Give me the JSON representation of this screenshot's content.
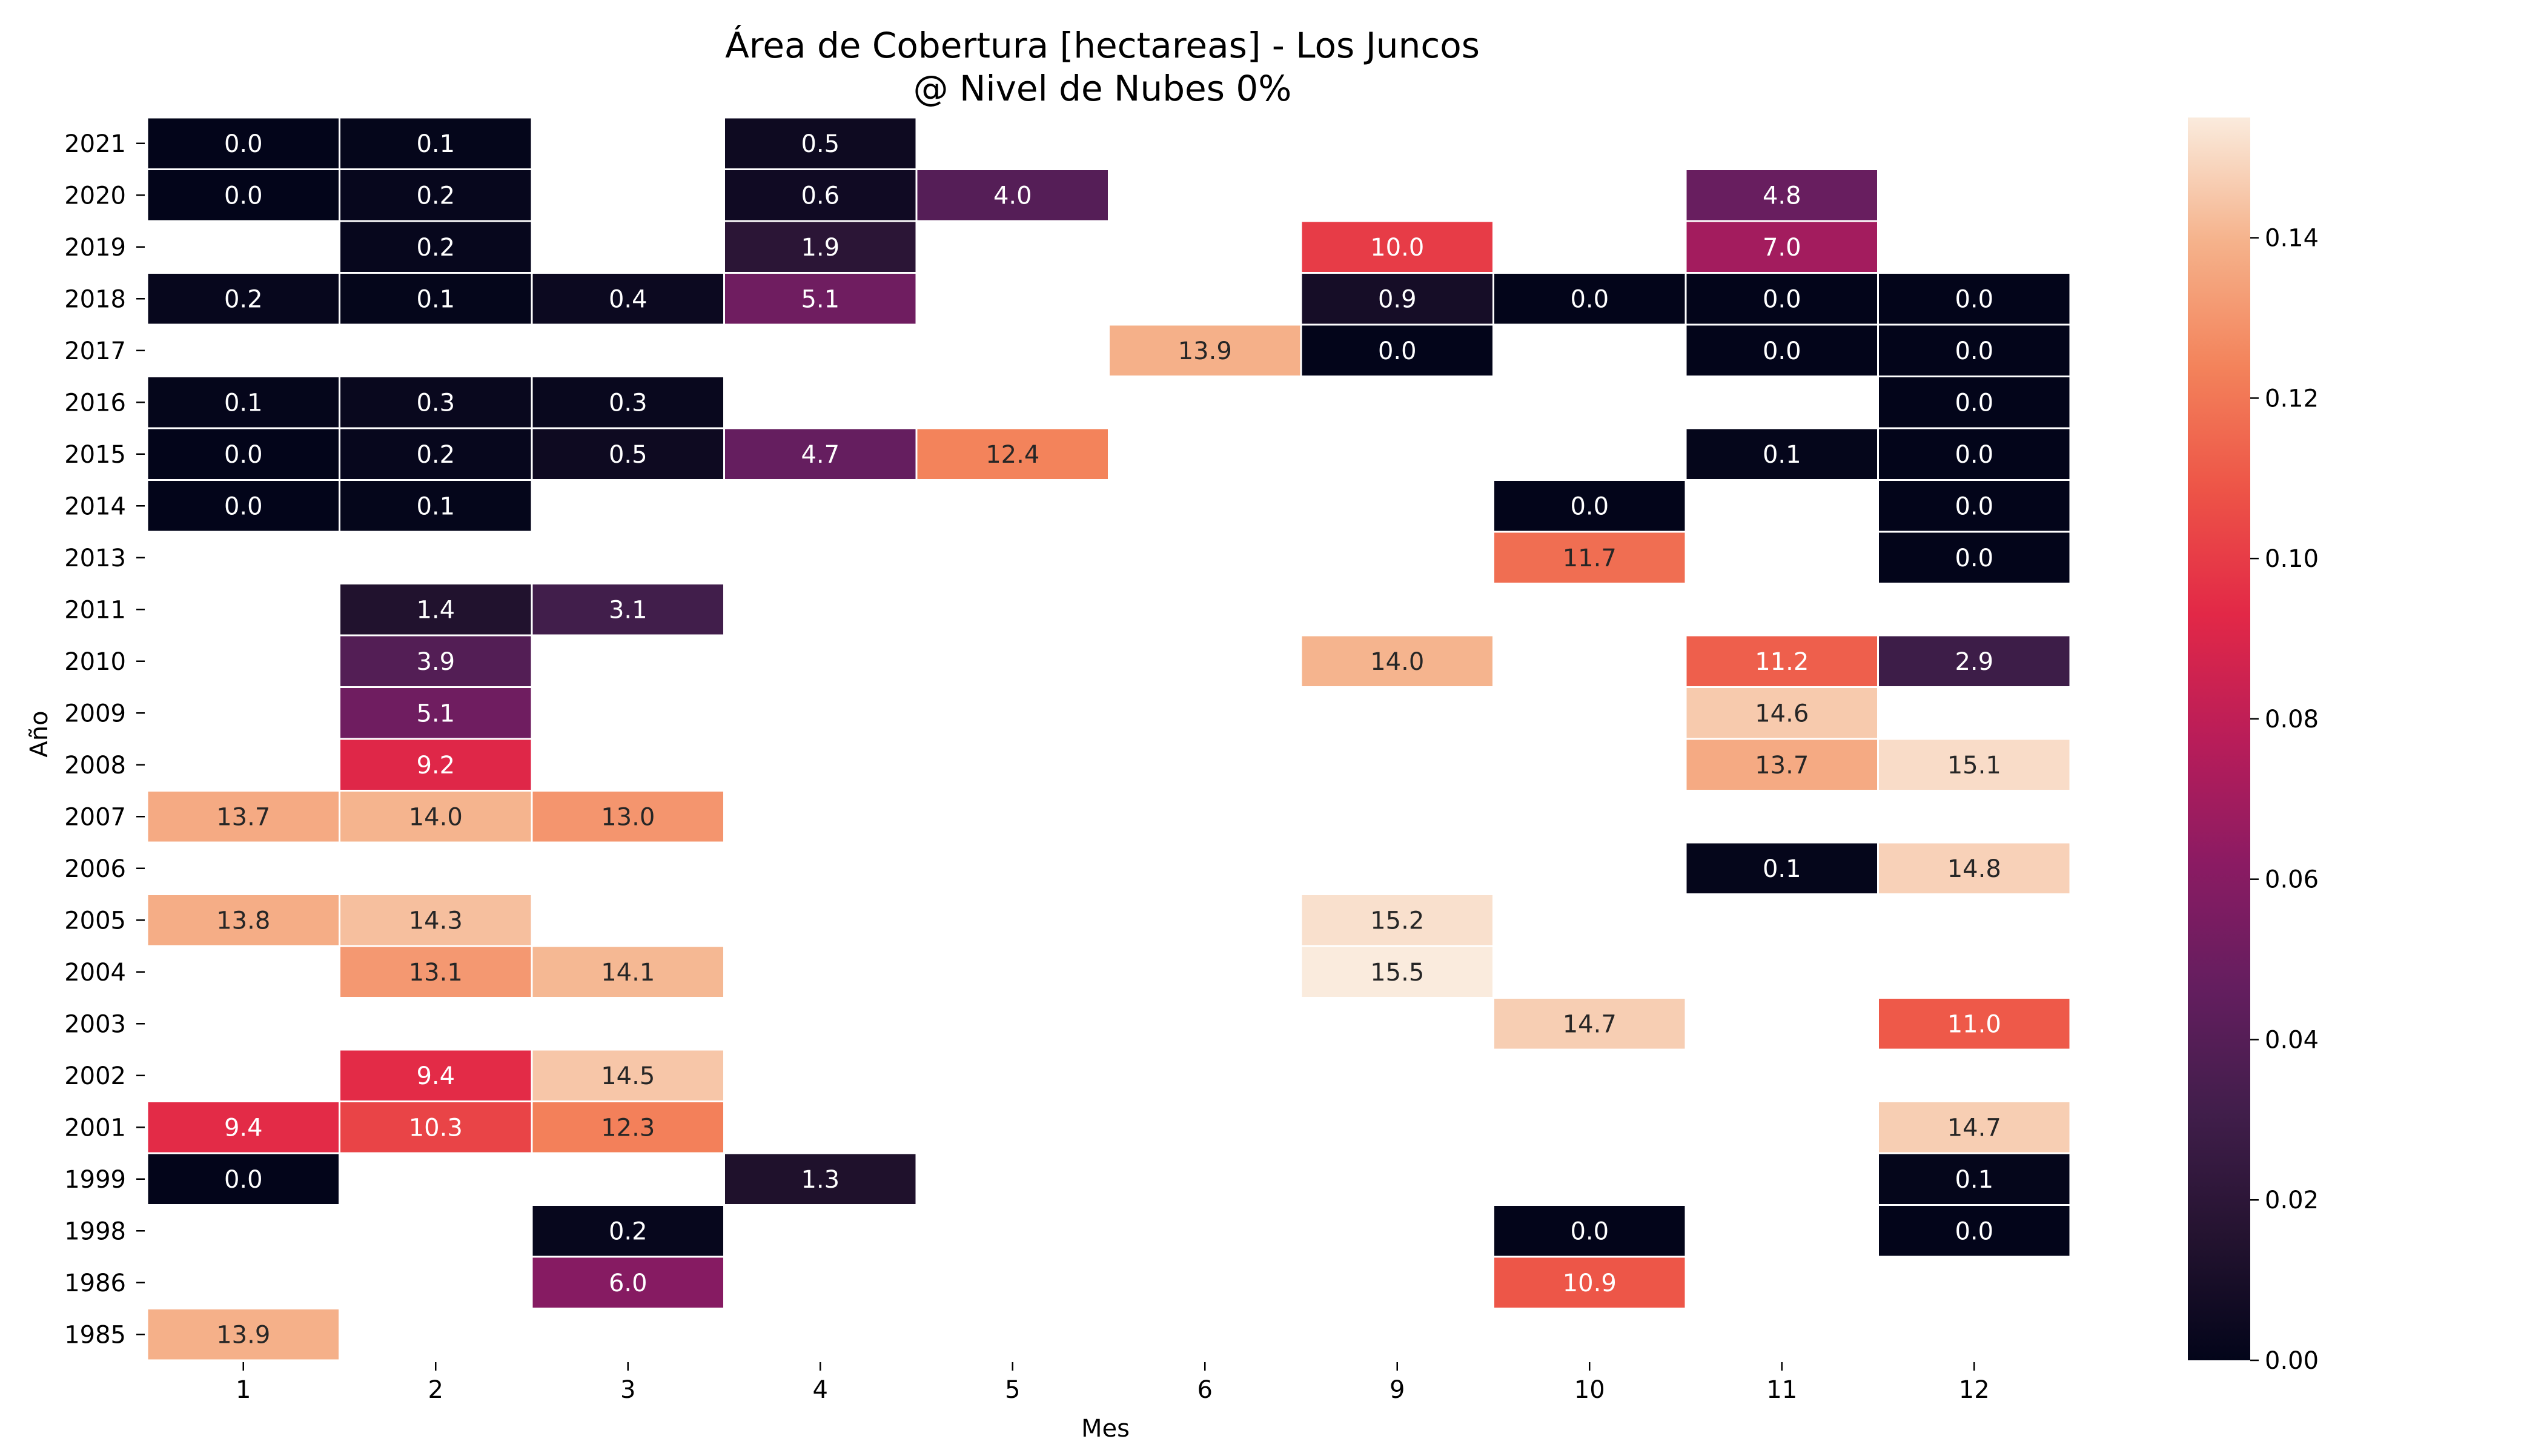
{
  "chart_data": {
    "type": "heatmap",
    "title": "Área de Cobertura [hectareas] - Los Juncos\n@ Nivel de Nubes 0%",
    "title_lines": [
      "Área de Cobertura [hectareas] - Los Juncos",
      "@ Nivel de Nubes 0%"
    ],
    "xlabel": "Mes",
    "ylabel": "Año",
    "x": [
      "1",
      "2",
      "3",
      "4",
      "5",
      "6",
      "9",
      "10",
      "11",
      "12"
    ],
    "y": [
      "2021",
      "2020",
      "2019",
      "2018",
      "2017",
      "2016",
      "2015",
      "2014",
      "2013",
      "2011",
      "2010",
      "2009",
      "2008",
      "2007",
      "2006",
      "2005",
      "2004",
      "2003",
      "2002",
      "2001",
      "1999",
      "1998",
      "1986",
      "1985"
    ],
    "values": [
      [
        0.0,
        0.1,
        null,
        0.5,
        null,
        null,
        null,
        null,
        null,
        null
      ],
      [
        0.0,
        0.2,
        null,
        0.6,
        4.0,
        null,
        null,
        null,
        4.8,
        null
      ],
      [
        null,
        0.2,
        null,
        1.9,
        null,
        null,
        10.0,
        null,
        7.0,
        null
      ],
      [
        0.2,
        0.1,
        0.4,
        5.1,
        null,
        null,
        0.9,
        0.0,
        0.0,
        0.0
      ],
      [
        null,
        null,
        null,
        null,
        null,
        13.9,
        0.0,
        null,
        0.0,
        0.0
      ],
      [
        0.1,
        0.3,
        0.3,
        null,
        null,
        null,
        null,
        null,
        null,
        0.0
      ],
      [
        0.0,
        0.2,
        0.5,
        4.7,
        12.4,
        null,
        null,
        null,
        0.1,
        0.0
      ],
      [
        0.0,
        0.1,
        null,
        null,
        null,
        null,
        null,
        0.0,
        null,
        0.0
      ],
      [
        null,
        null,
        null,
        null,
        null,
        null,
        null,
        11.7,
        null,
        0.0
      ],
      [
        null,
        1.4,
        3.1,
        null,
        null,
        null,
        null,
        null,
        null,
        null
      ],
      [
        null,
        3.9,
        null,
        null,
        null,
        null,
        14.0,
        null,
        11.2,
        2.9
      ],
      [
        null,
        5.1,
        null,
        null,
        null,
        null,
        null,
        null,
        14.6,
        null
      ],
      [
        null,
        9.2,
        null,
        null,
        null,
        null,
        null,
        null,
        13.7,
        15.1
      ],
      [
        13.7,
        14.0,
        13.0,
        null,
        null,
        null,
        null,
        null,
        null,
        null
      ],
      [
        null,
        null,
        null,
        null,
        null,
        null,
        null,
        null,
        0.1,
        14.8
      ],
      [
        13.8,
        14.3,
        null,
        null,
        null,
        null,
        15.2,
        null,
        null,
        null
      ],
      [
        null,
        13.1,
        14.1,
        null,
        null,
        null,
        15.5,
        null,
        null,
        null
      ],
      [
        null,
        null,
        null,
        null,
        null,
        null,
        null,
        14.7,
        null,
        11.0
      ],
      [
        null,
        9.4,
        14.5,
        null,
        null,
        null,
        null,
        null,
        null,
        null
      ],
      [
        9.4,
        10.3,
        12.3,
        null,
        null,
        null,
        null,
        null,
        null,
        14.7
      ],
      [
        0.0,
        null,
        null,
        1.3,
        null,
        null,
        null,
        null,
        null,
        0.1
      ],
      [
        null,
        null,
        0.2,
        null,
        null,
        null,
        null,
        0.0,
        null,
        0.0
      ],
      [
        null,
        null,
        6.0,
        null,
        null,
        null,
        null,
        10.9,
        null,
        null
      ],
      [
        13.9,
        null,
        null,
        null,
        null,
        null,
        null,
        null,
        null,
        null
      ]
    ],
    "colorbar": {
      "colormap": "rocket",
      "vmin": 0.0,
      "vmax": 0.155,
      "vmax_data": 15.5,
      "ticks": [
        "0.00",
        "0.02",
        "0.04",
        "0.06",
        "0.08",
        "0.10",
        "0.12",
        "0.14"
      ]
    },
    "grid": false,
    "legend": "colorbar-right"
  }
}
